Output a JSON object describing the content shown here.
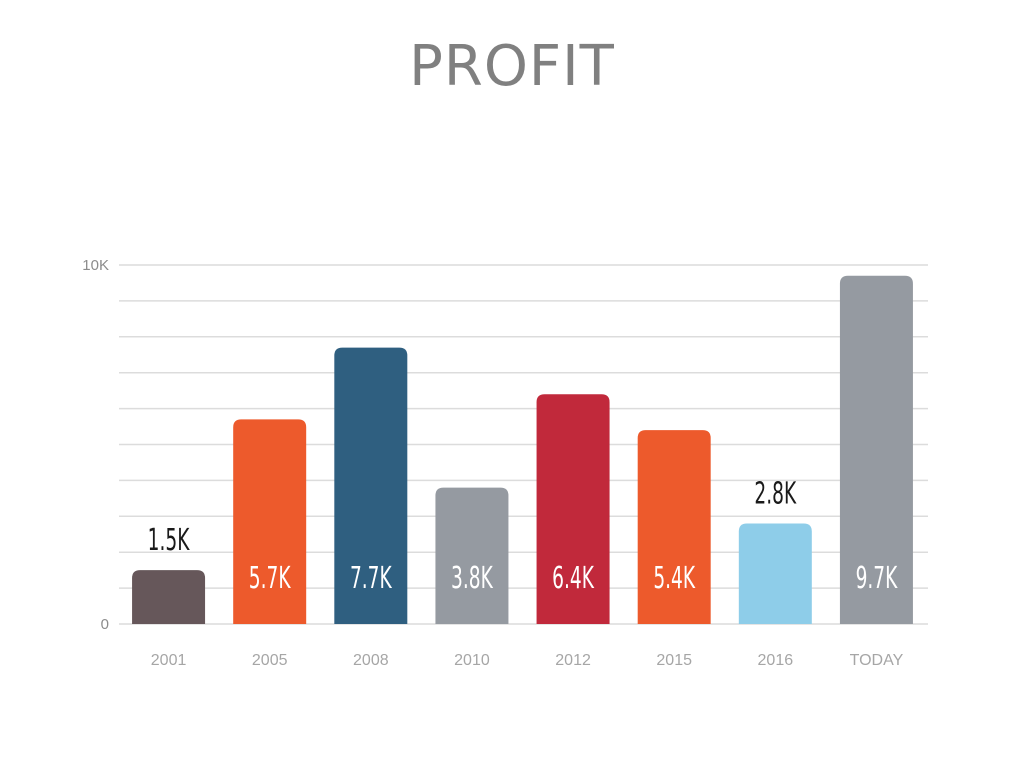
{
  "chart_data": {
    "type": "bar",
    "title": "PROFIT",
    "xlabel": "",
    "ylabel": "",
    "ylim": [
      0,
      10000
    ],
    "y_ticks": [
      {
        "value": 0,
        "label": "0"
      },
      {
        "value": 10000,
        "label": "10K"
      }
    ],
    "grid": true,
    "gridline_count": 10,
    "categories": [
      "2001",
      "2005",
      "2008",
      "2010",
      "2012",
      "2015",
      "2016",
      "TODAY"
    ],
    "values": [
      1500,
      5700,
      7700,
      3800,
      6400,
      5400,
      2800,
      9700
    ],
    "data_labels": [
      "1.5K",
      "5.7K",
      "7.7K",
      "3.8K",
      "6.4K",
      "5.4K",
      "2.8K",
      "9.7K"
    ],
    "label_placement": [
      "above",
      "inside",
      "inside",
      "inside",
      "inside",
      "inside",
      "above",
      "inside"
    ],
    "colors": [
      "#66575a",
      "#ed5a2c",
      "#2f5f80",
      "#959aa1",
      "#c1293b",
      "#ed5a2c",
      "#8ecde9",
      "#959aa1"
    ],
    "label_colors": {
      "inside": "#ffffff",
      "above": "#1a1a1a"
    },
    "gridline_color": "#dcdcdc"
  }
}
